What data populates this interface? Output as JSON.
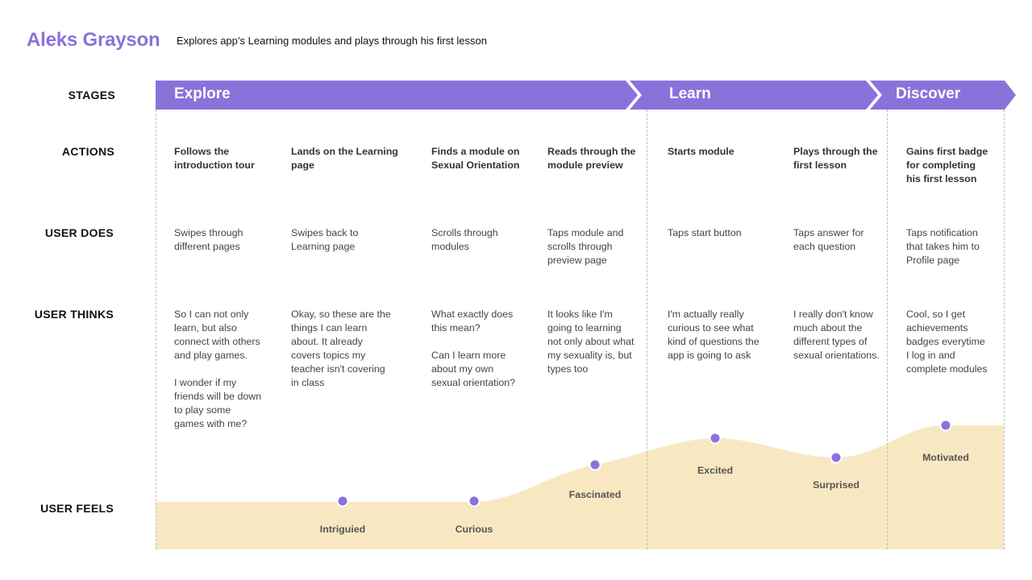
{
  "header": {
    "persona_name": "Aleks Grayson",
    "scenario": "Explores app’s Learning modules and plays through his first lesson"
  },
  "row_labels": {
    "stages": "STAGES",
    "actions": "ACTIONS",
    "user_does": "USER DOES",
    "user_thinks": "USER THINKS",
    "user_feels": "USER FEELS"
  },
  "colors": {
    "accent": "#8a72da",
    "curve_fill": "#f8e8c2",
    "divider": "#bdbdbd"
  },
  "stages": [
    {
      "name": "Explore"
    },
    {
      "name": "Learn"
    },
    {
      "name": "Discover"
    }
  ],
  "columns": [
    {
      "stage": "Explore",
      "action": "Follows the\nintroduction tour",
      "does": "Swipes through\ndifferent pages",
      "thinks": "So I can not only\nlearn, but also\nconnect with others\nand play games.\n\nI wonder if my\nfriends will be down\nto play some\ngames with me?",
      "feels": "Intriguied"
    },
    {
      "stage": "Explore",
      "action": "Lands on the Learning\npage",
      "does": "Swipes back to\nLearning page",
      "thinks": "Okay, so these are the\nthings I can learn\nabout. It already\ncovers topics my\nteacher isn't covering\nin class",
      "feels": "Curious"
    },
    {
      "stage": "Explore",
      "action": "Finds a module on\nSexual Orientation",
      "does": "Scrolls through\nmodules",
      "thinks": "What exactly does\nthis mean?\n\nCan I learn more\nabout my own\nsexual orientation?",
      "feels": "Fascinated"
    },
    {
      "stage": "Explore",
      "action": "Reads through the\nmodule preview",
      "does": "Taps module and\nscrolls through\npreview page",
      "thinks": "It looks like I'm\ngoing to learning\nnot only about what\nmy sexuality is, but\ntypes too",
      "feels": "Excited"
    },
    {
      "stage": "Learn",
      "action": "Starts module",
      "does": "Taps start button",
      "thinks": "I'm actually really\ncurious to see what\nkind of questions the\napp is going to ask",
      "feels": "Surprised"
    },
    {
      "stage": "Learn",
      "action": "Plays through the\nfirst lesson",
      "does": "Taps answer for\neach question",
      "thinks": "I really don't know\nmuch about the\ndifferent types of\nsexual orientations.",
      "feels": "Motivated"
    },
    {
      "stage": "Discover",
      "action": "Gains first badge\nfor completing\nhis first lesson",
      "does": "Taps notification\nthat takes him to\nProfile page",
      "thinks": "Cool, so I get\nachievements\nbadges everytime\nI log in and\ncomplete modules",
      "feels": ""
    }
  ],
  "emotions": [
    {
      "label": "Intriguied"
    },
    {
      "label": "Curious"
    },
    {
      "label": "Fascinated"
    },
    {
      "label": "Excited"
    },
    {
      "label": "Surprised"
    },
    {
      "label": "Motivated"
    }
  ]
}
